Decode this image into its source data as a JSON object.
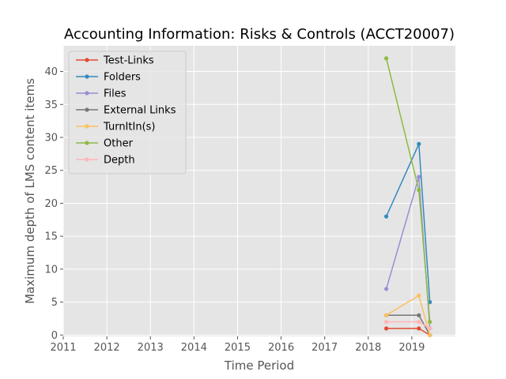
{
  "chart_data": {
    "type": "line",
    "title": "Accounting Information: Risks & Controls (ACCT20007)",
    "xlabel": "Time Period",
    "ylabel": "Maximum depth of LMS content items",
    "xlim": [
      2011,
      2020
    ],
    "ylim": [
      -0.2,
      43.9
    ],
    "xticks": [
      "2011",
      "2012",
      "2013",
      "2014",
      "2015",
      "2016",
      "2017",
      "2018",
      "2019"
    ],
    "yticks": [
      "0",
      "5",
      "10",
      "15",
      "20",
      "25",
      "30",
      "35",
      "40"
    ],
    "grid": true,
    "legend_position": "top-left",
    "x": [
      "2018-06-01",
      "2019-03-01",
      "2019-06-01"
    ],
    "series": [
      {
        "name": "Test-Links",
        "color": "#e24a33",
        "values": [
          1,
          1,
          0
        ]
      },
      {
        "name": "Folders",
        "color": "#348abd",
        "values": [
          18,
          29,
          5
        ]
      },
      {
        "name": "Files",
        "color": "#988ed5",
        "values": [
          7,
          24,
          1
        ]
      },
      {
        "name": "External Links",
        "color": "#777777",
        "values": [
          3,
          3,
          0
        ]
      },
      {
        "name": "TurnItIn(s)",
        "color": "#fbc15e",
        "values": [
          3,
          6,
          0
        ]
      },
      {
        "name": "Other",
        "color": "#8eba42",
        "values": [
          42,
          22,
          2
        ]
      },
      {
        "name": "Depth",
        "color": "#ffb5b8",
        "values": [
          2,
          2,
          1
        ]
      }
    ]
  }
}
